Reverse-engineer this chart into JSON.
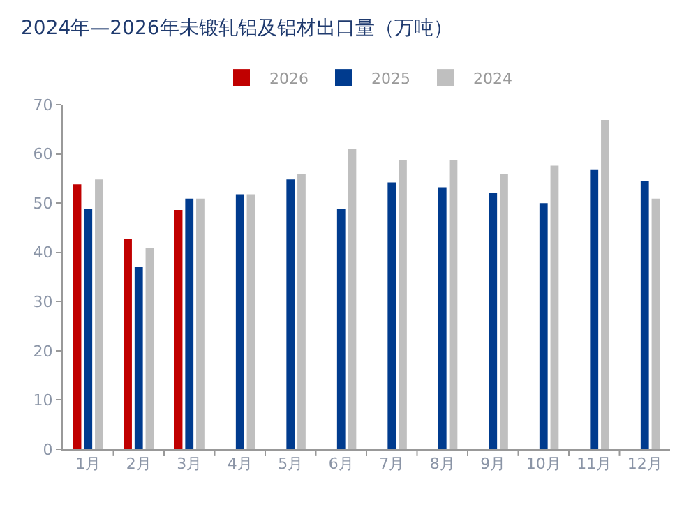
{
  "chart_data": {
    "type": "bar",
    "title": "2024年—2026年未锻轧铝及铝材出口量（万吨）",
    "categories": [
      "1月",
      "2月",
      "3月",
      "4月",
      "5月",
      "6月",
      "7月",
      "8月",
      "9月",
      "10月",
      "11月",
      "12月"
    ],
    "series": [
      {
        "name": "2026",
        "color": "#c00000",
        "values": [
          53.8,
          42.8,
          48.6,
          null,
          null,
          null,
          null,
          null,
          null,
          null,
          null,
          null
        ]
      },
      {
        "name": "2025",
        "color": "#003b8e",
        "values": [
          48.8,
          37,
          50.9,
          51.8,
          54.8,
          48.8,
          54.2,
          53.2,
          52,
          50,
          56.7,
          54.5
        ]
      },
      {
        "name": "2024",
        "color": "#bfbfbf",
        "values": [
          54.8,
          40.8,
          50.9,
          51.8,
          55.9,
          61,
          58.7,
          58.7,
          55.9,
          57.6,
          66.9,
          50.9
        ]
      }
    ],
    "ylim": [
      0,
      70
    ],
    "yticks": [
      0,
      10,
      20,
      30,
      40,
      50,
      60,
      70
    ],
    "grid": false,
    "legend": "top"
  }
}
